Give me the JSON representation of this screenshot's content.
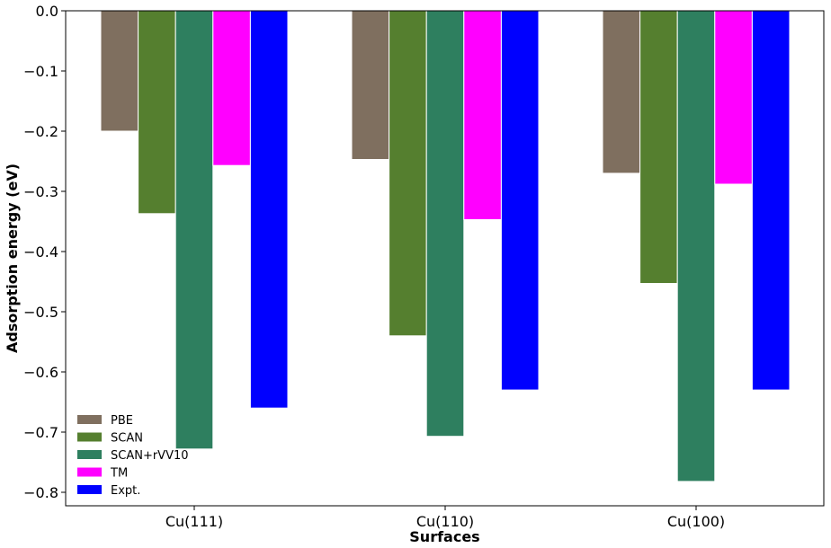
{
  "chart_data": {
    "type": "bar",
    "title": "",
    "xlabel": "Surfaces",
    "ylabel": "Adsorption energy (eV)",
    "categories": [
      "Cu(111)",
      "Cu(110)",
      "Cu(100)"
    ],
    "ylim": [
      -0.82,
      0.0
    ],
    "yticks": [
      0.0,
      -0.1,
      -0.2,
      -0.3,
      -0.4,
      -0.5,
      -0.6,
      -0.7,
      -0.8
    ],
    "ytick_labels": [
      "0.0",
      "−0.1",
      "−0.2",
      "−0.3",
      "−0.4",
      "−0.5",
      "−0.6",
      "−0.7",
      "−0.8"
    ],
    "grid": false,
    "legend_position": "lower-left",
    "series": [
      {
        "name": "PBE",
        "color": "#7f6f5f",
        "values": [
          -0.2,
          -0.247,
          -0.27
        ]
      },
      {
        "name": "SCAN",
        "color": "#557f2f",
        "values": [
          -0.337,
          -0.54,
          -0.453
        ]
      },
      {
        "name": "SCAN+rVV10",
        "color": "#2e7f5f",
        "values": [
          -0.728,
          -0.707,
          -0.782
        ]
      },
      {
        "name": "TM",
        "color": "#ff00ff",
        "values": [
          -0.257,
          -0.347,
          -0.288
        ]
      },
      {
        "name": "Expt.",
        "color": "#0000ff",
        "values": [
          -0.66,
          -0.63,
          -0.63
        ]
      }
    ]
  }
}
